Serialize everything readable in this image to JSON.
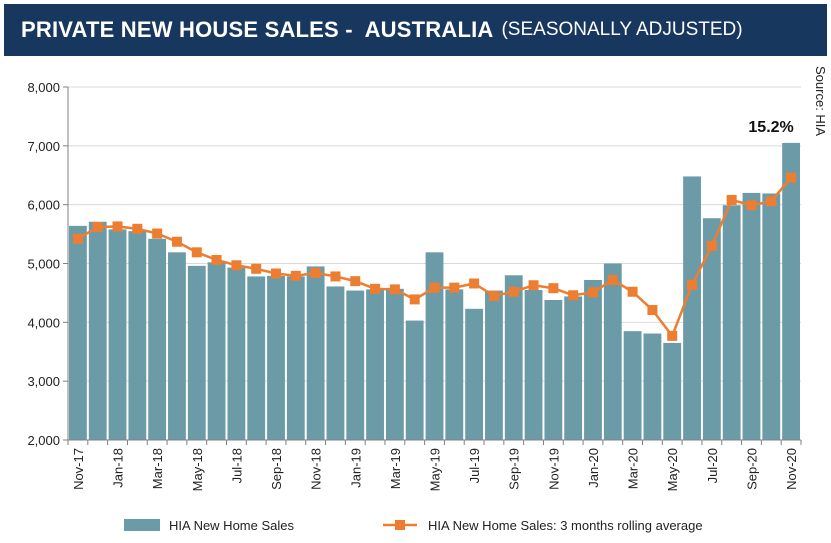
{
  "header": {
    "title": "PRIVATE NEW HOUSE SALES -  AUSTRALIA",
    "subtitle": "(SEASONALLY ADJUSTED)"
  },
  "source_note": "Source: HIA",
  "colors": {
    "bar": "#6c9ba8",
    "line": "#ed7d31",
    "header_bg": "#17375e"
  },
  "chart_data": {
    "type": "bar",
    "title": "PRIVATE NEW HOUSE SALES - AUSTRALIA (SEASONALLY ADJUSTED)",
    "xlabel": "",
    "ylabel": "",
    "ylim": [
      2000,
      8000
    ],
    "yticks": [
      2000,
      3000,
      4000,
      5000,
      6000,
      7000,
      8000
    ],
    "ytick_labels": [
      "2,000",
      "3,000",
      "4,000",
      "5,000",
      "6,000",
      "7,000",
      "8,000"
    ],
    "grid": true,
    "legend_position": "bottom",
    "categories": [
      "Nov-17",
      "Dec-17",
      "Jan-18",
      "Feb-18",
      "Mar-18",
      "Apr-18",
      "May-18",
      "Jun-18",
      "Jul-18",
      "Aug-18",
      "Sep-18",
      "Oct-18",
      "Nov-18",
      "Dec-18",
      "Jan-19",
      "Feb-19",
      "Mar-19",
      "Apr-19",
      "May-19",
      "Jun-19",
      "Jul-19",
      "Aug-19",
      "Sep-19",
      "Oct-19",
      "Nov-19",
      "Dec-19",
      "Jan-20",
      "Feb-20",
      "Mar-20",
      "Apr-20",
      "May-20",
      "Jun-20",
      "Jul-20",
      "Aug-20",
      "Sep-20",
      "Oct-20",
      "Nov-20"
    ],
    "xtick_labels": [
      "Nov-17",
      "Jan-18",
      "Mar-18",
      "May-18",
      "Jul-18",
      "Sep-18",
      "Nov-18",
      "Jan-19",
      "Mar-19",
      "May-19",
      "Jul-19",
      "Sep-19",
      "Nov-19",
      "Jan-20",
      "Mar-20",
      "May-20",
      "Jul-20",
      "Sep-20",
      "Nov-20"
    ],
    "series": [
      {
        "name": "HIA New Home Sales",
        "type": "bar",
        "values": [
          5640,
          5710,
          5580,
          5550,
          5420,
          5190,
          4960,
          5020,
          4930,
          4780,
          4790,
          4780,
          4950,
          4610,
          4540,
          4560,
          4570,
          4030,
          5190,
          4560,
          4230,
          4540,
          4800,
          4550,
          4380,
          4440,
          4720,
          5000,
          3850,
          3810,
          3650,
          6480,
          5770,
          5990,
          6200,
          6190,
          7050
        ]
      },
      {
        "name": "HIA New Home Sales: 3 months rolling average",
        "type": "line",
        "values": [
          5420,
          5620,
          5630,
          5590,
          5510,
          5370,
          5190,
          5060,
          4970,
          4910,
          4830,
          4790,
          4840,
          4780,
          4700,
          4570,
          4560,
          4390,
          4590,
          4590,
          4660,
          4450,
          4520,
          4630,
          4580,
          4460,
          4510,
          4720,
          4520,
          4210,
          3770,
          4640,
          5300,
          6080,
          5990,
          6060,
          6460
        ]
      }
    ],
    "annotations": [
      {
        "category": "Nov-20",
        "text": "15.2%"
      }
    ]
  }
}
